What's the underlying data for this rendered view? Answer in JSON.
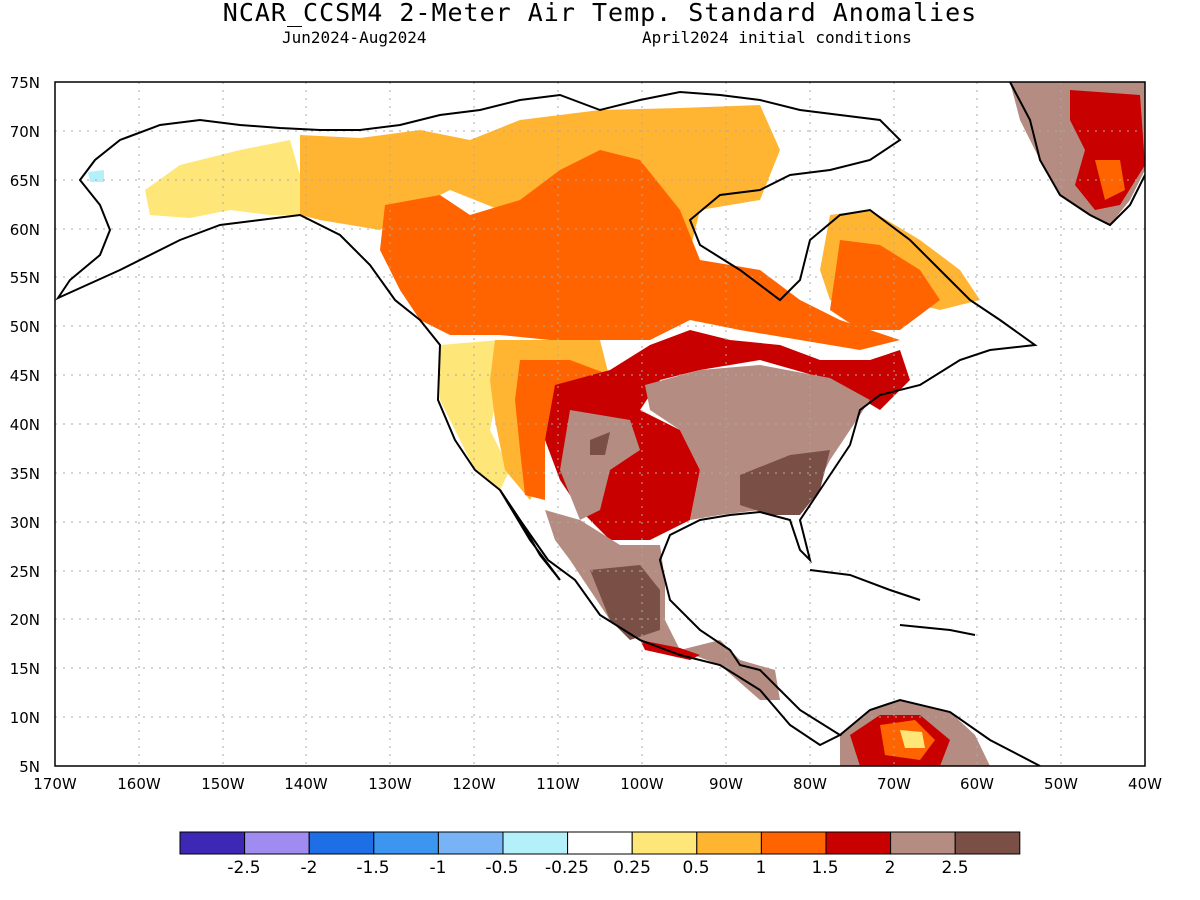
{
  "header": {
    "title": "NCAR_CCSM4 2-Meter Air Temp. Standard Anomalies",
    "period": "Jun2024-Aug2024",
    "init": "April2024 initial conditions"
  },
  "map": {
    "lon_range": [
      -170,
      -40
    ],
    "lat_range": [
      5,
      75
    ],
    "lat_labels": [
      "75N",
      "70N",
      "65N",
      "60N",
      "55N",
      "50N",
      "45N",
      "40N",
      "35N",
      "30N",
      "25N",
      "20N",
      "15N",
      "10N",
      "5N"
    ],
    "lon_labels": [
      "170W",
      "160W",
      "150W",
      "140W",
      "130W",
      "120W",
      "110W",
      "100W",
      "90W",
      "80W",
      "70W",
      "60W",
      "50W",
      "40W"
    ]
  },
  "colorbar": {
    "colors": [
      "#3c28b4",
      "#a08cf0",
      "#1e6ee6",
      "#3c96f0",
      "#78b4f5",
      "#b4f0fa",
      "#ffffff",
      "#ffe678",
      "#ffb432",
      "#ff6400",
      "#c80000",
      "#b48c82",
      "#7a5046"
    ],
    "labels": [
      "-2.5",
      "-2",
      "-1.5",
      "-1",
      "-0.5",
      "-0.25",
      "0.25",
      "0.5",
      "1",
      "1.5",
      "2",
      "2.5"
    ]
  }
}
